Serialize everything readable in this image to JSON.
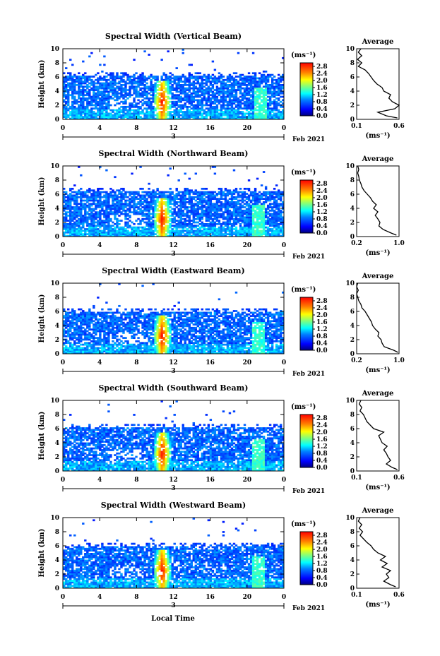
{
  "figure": {
    "xlabel": "Local Time",
    "date_label": "3",
    "month_label": "Feb 2021"
  },
  "chart_data": [
    {
      "type": "heatmap",
      "title": "Spectral Width (Vertical Beam)",
      "xlabel": "Local Time",
      "ylabel": "Height (km)",
      "xlim": [
        0,
        24
      ],
      "ylim": [
        0,
        10
      ],
      "xticks": [
        "0",
        "4",
        "8",
        "12",
        "16",
        "20",
        "0"
      ],
      "yticks": [
        "0",
        "2",
        "4",
        "6",
        "8",
        "10"
      ],
      "colorbar": {
        "label": "(ms⁻¹)",
        "range": [
          0.0,
          3.0
        ],
        "ticks": [
          "0.0",
          "0.4",
          "0.8",
          "1.2",
          "1.6",
          "2.0",
          "2.4",
          "2.8"
        ]
      },
      "features": {
        "echo_top_km": 6.2,
        "convective_bursts_hours": [
          10.8,
          21.5
        ],
        "peak_spectral_width": 3.0
      },
      "average_profile": {
        "title": "Average",
        "xlabel": "(ms⁻¹)",
        "xlim": [
          0.1,
          0.6
        ],
        "xticks": [
          "0.1",
          "0.6"
        ],
        "yticks": [
          "0",
          "2",
          "4",
          "6",
          "8",
          "10"
        ],
        "height_km": [
          0.2,
          0.5,
          1,
          1.5,
          2,
          2.5,
          3,
          3.5,
          4,
          4.5,
          5,
          5.5,
          6,
          6.5,
          7,
          7.5,
          8,
          8.5,
          9,
          9.5,
          10
        ],
        "value": [
          0.58,
          0.45,
          0.35,
          0.55,
          0.6,
          0.52,
          0.48,
          0.5,
          0.42,
          0.4,
          0.34,
          0.3,
          0.27,
          0.24,
          0.2,
          0.12,
          0.16,
          0.11,
          0.16,
          0.12,
          0.15
        ]
      }
    },
    {
      "type": "heatmap",
      "title": "Spectral Width (Northward Beam)",
      "xlabel": "Local Time",
      "ylabel": "Height (km)",
      "xlim": [
        0,
        24
      ],
      "ylim": [
        0,
        10
      ],
      "xticks": [
        "0",
        "4",
        "8",
        "12",
        "16",
        "20",
        "0"
      ],
      "yticks": [
        "0",
        "2",
        "4",
        "6",
        "8",
        "10"
      ],
      "colorbar": {
        "label": "(ms⁻¹)",
        "range": [
          0.0,
          3.0
        ],
        "ticks": [
          "0.0",
          "0.4",
          "0.8",
          "1.2",
          "1.6",
          "2.0",
          "2.4",
          "2.8"
        ]
      },
      "features": {
        "echo_top_km": 6.5,
        "convective_bursts_hours": [
          10.8,
          21.3
        ],
        "peak_spectral_width": 3.0
      },
      "average_profile": {
        "title": "Average",
        "xlabel": "(ms⁻¹)",
        "xlim": [
          0.2,
          1.0
        ],
        "xticks": [
          "0.2",
          "1.0"
        ],
        "yticks": [
          "0",
          "2",
          "4",
          "6",
          "8",
          "10"
        ],
        "height_km": [
          0.2,
          0.5,
          1,
          1.5,
          2,
          2.5,
          3,
          3.5,
          4,
          4.5,
          5,
          5.5,
          6,
          6.5,
          7,
          7.5,
          8,
          8.5,
          9,
          9.5,
          10
        ],
        "value": [
          0.95,
          0.85,
          0.7,
          0.62,
          0.64,
          0.6,
          0.55,
          0.6,
          0.52,
          0.57,
          0.5,
          0.46,
          0.4,
          0.34,
          0.3,
          0.28,
          0.25,
          0.24,
          0.22,
          0.24,
          0.22
        ]
      }
    },
    {
      "type": "heatmap",
      "title": "Spectral Width (Eastward Beam)",
      "xlabel": "Local Time",
      "ylabel": "Height (km)",
      "xlim": [
        0,
        24
      ],
      "ylim": [
        0,
        10
      ],
      "xticks": [
        "0",
        "4",
        "8",
        "12",
        "16",
        "20",
        "0"
      ],
      "yticks": [
        "0",
        "2",
        "4",
        "6",
        "8",
        "10"
      ],
      "colorbar": {
        "label": "(ms⁻¹)",
        "range": [
          0.0,
          3.0
        ],
        "ticks": [
          "0.0",
          "0.4",
          "0.8",
          "1.2",
          "1.6",
          "2.0",
          "2.4",
          "2.8"
        ]
      },
      "features": {
        "echo_top_km": 6.0,
        "convective_bursts_hours": [
          10.8,
          21.3
        ],
        "peak_spectral_width": 3.0
      },
      "average_profile": {
        "title": "Average",
        "xlabel": "(ms⁻¹)",
        "xlim": [
          0.2,
          1.0
        ],
        "xticks": [
          "0.2",
          "1.0"
        ],
        "yticks": [
          "0",
          "2",
          "4",
          "6",
          "8",
          "10"
        ],
        "height_km": [
          0.2,
          0.5,
          1,
          1.5,
          2,
          2.5,
          3,
          3.5,
          4,
          4.5,
          5,
          5.5,
          6,
          6.5,
          7,
          7.5,
          8,
          8.5,
          9,
          9.5,
          10
        ],
        "value": [
          0.98,
          0.9,
          0.72,
          0.68,
          0.66,
          0.6,
          0.62,
          0.55,
          0.5,
          0.48,
          0.44,
          0.4,
          0.36,
          0.3,
          0.28,
          0.24,
          0.22,
          0.2,
          0.23,
          0.2,
          0.22
        ]
      }
    },
    {
      "type": "heatmap",
      "title": "Spectral Width (Southward Beam)",
      "xlabel": "Local Time",
      "ylabel": "Height (km)",
      "xlim": [
        0,
        24
      ],
      "ylim": [
        0,
        10
      ],
      "xticks": [
        "0",
        "4",
        "8",
        "12",
        "16",
        "20",
        "0"
      ],
      "yticks": [
        "0",
        "2",
        "4",
        "6",
        "8",
        "10"
      ],
      "colorbar": {
        "label": "(ms⁻¹)",
        "range": [
          0.0,
          3.0
        ],
        "ticks": [
          "0.0",
          "0.4",
          "0.8",
          "1.2",
          "1.6",
          "2.0",
          "2.4",
          "2.8"
        ]
      },
      "features": {
        "echo_top_km": 6.2,
        "convective_bursts_hours": [
          10.8,
          21.3
        ],
        "peak_spectral_width": 3.0
      },
      "average_profile": {
        "title": "Average",
        "xlabel": "(ms⁻¹)",
        "xlim": [
          0.1,
          0.6
        ],
        "xticks": [
          "0.1",
          "0.6"
        ],
        "yticks": [
          "0",
          "2",
          "4",
          "6",
          "8",
          "10"
        ],
        "height_km": [
          0.2,
          0.5,
          1,
          1.5,
          2,
          2.5,
          3,
          3.5,
          4,
          4.5,
          5,
          5.5,
          6,
          6.5,
          7,
          7.5,
          8,
          8.5,
          9,
          9.5,
          10
        ],
        "value": [
          0.58,
          0.52,
          0.45,
          0.5,
          0.47,
          0.45,
          0.42,
          0.46,
          0.4,
          0.38,
          0.36,
          0.42,
          0.3,
          0.26,
          0.22,
          0.2,
          0.18,
          0.14,
          0.16,
          0.13,
          0.15
        ]
      }
    },
    {
      "type": "heatmap",
      "title": "Spectral Width (Westward Beam)",
      "xlabel": "Local Time",
      "ylabel": "Height (km)",
      "xlim": [
        0,
        24
      ],
      "ylim": [
        0,
        10
      ],
      "xticks": [
        "0",
        "4",
        "8",
        "12",
        "16",
        "20",
        "0"
      ],
      "yticks": [
        "0",
        "2",
        "4",
        "6",
        "8",
        "10"
      ],
      "colorbar": {
        "label": "(ms⁻¹)",
        "range": [
          0.0,
          3.0
        ],
        "ticks": [
          "0.0",
          "0.4",
          "0.8",
          "1.2",
          "1.6",
          "2.0",
          "2.4",
          "2.8"
        ]
      },
      "features": {
        "echo_top_km": 6.0,
        "convective_bursts_hours": [
          10.8,
          21.3
        ],
        "peak_spectral_width": 3.0
      },
      "average_profile": {
        "title": "Average",
        "xlabel": "(ms⁻¹)",
        "xlim": [
          0.1,
          0.6
        ],
        "xticks": [
          "0.1",
          "0.6"
        ],
        "yticks": [
          "0",
          "2",
          "4",
          "6",
          "8",
          "10"
        ],
        "height_km": [
          0.2,
          0.5,
          1,
          1.5,
          2,
          2.5,
          3,
          3.5,
          4,
          4.5,
          5,
          5.5,
          6,
          6.5,
          7,
          7.5,
          8,
          8.5,
          9,
          9.5,
          10
        ],
        "value": [
          0.56,
          0.5,
          0.42,
          0.48,
          0.45,
          0.5,
          0.4,
          0.46,
          0.38,
          0.44,
          0.35,
          0.3,
          0.27,
          0.22,
          0.18,
          0.14,
          0.17,
          0.13,
          0.16,
          0.12,
          0.14
        ]
      }
    }
  ]
}
